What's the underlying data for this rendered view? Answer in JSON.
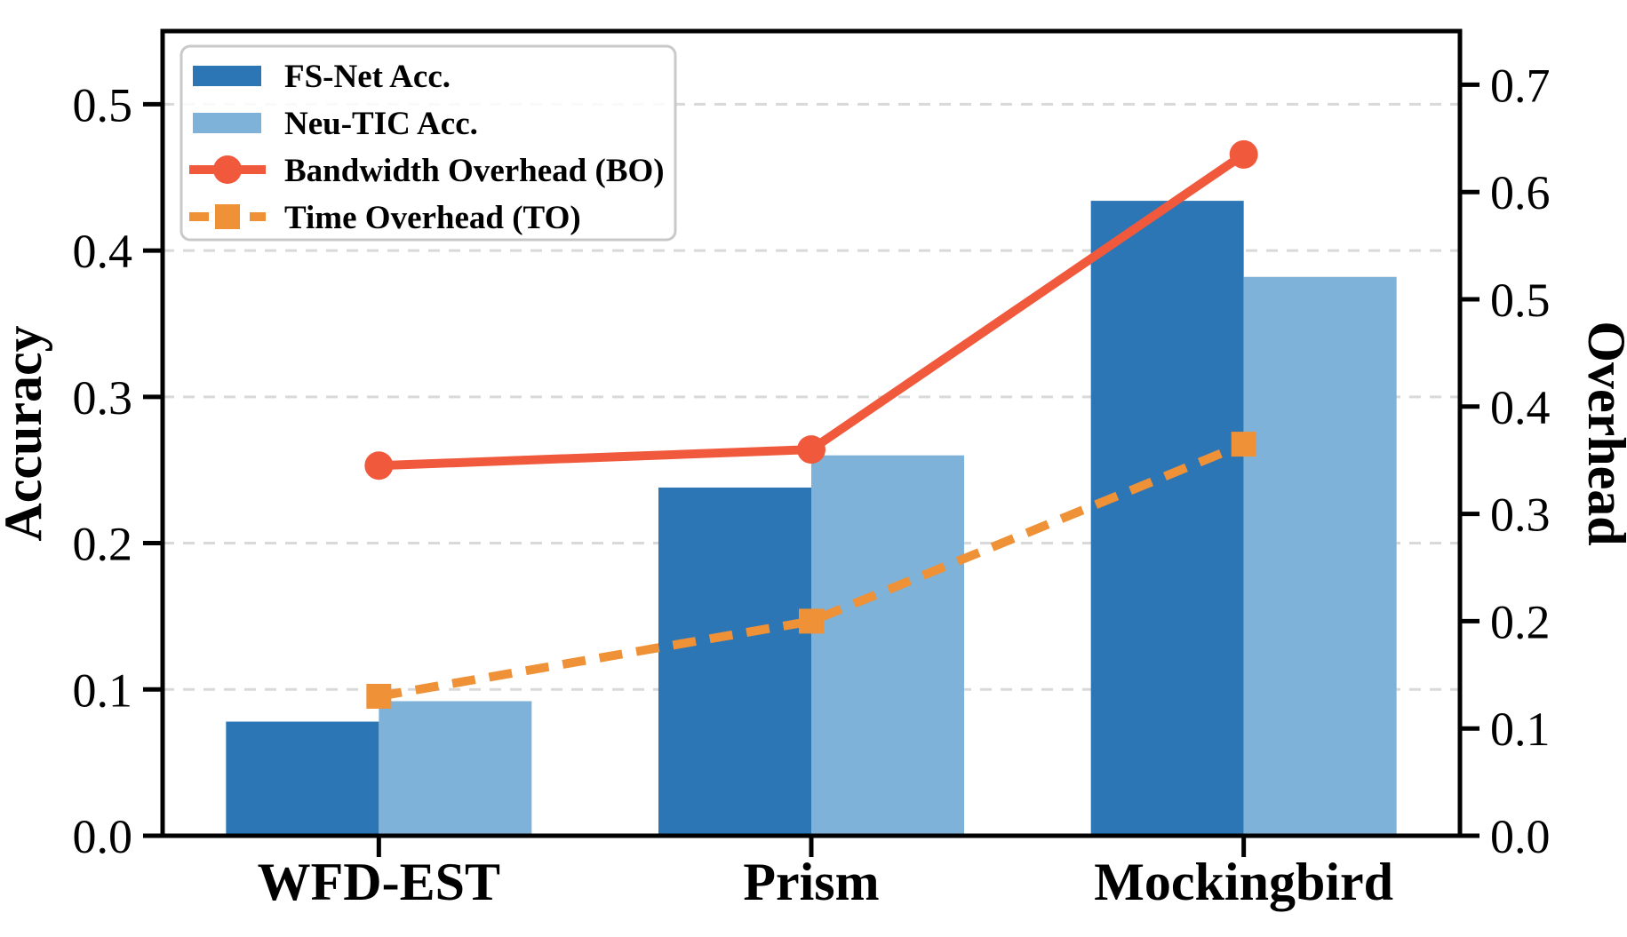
{
  "figure": {
    "background": "#ffffff",
    "text_color": "#000000",
    "spine_color": "#000000"
  },
  "chart_data": {
    "type": "bar",
    "subtype": "bar-line-combo",
    "categories": [
      "WFD-EST",
      "Prism",
      "Mockingbird"
    ],
    "series": [
      {
        "name": "FS-Net Acc.",
        "kind": "bar",
        "axis": "left",
        "color": "#2d76b5",
        "values": [
          0.078,
          0.238,
          0.434
        ]
      },
      {
        "name": "Neu-TIC Acc.",
        "kind": "bar",
        "axis": "left",
        "color": "#7fb2d9",
        "values": [
          0.092,
          0.26,
          0.382
        ]
      },
      {
        "name": "Bandwidth Overhead (BO)",
        "kind": "line",
        "style": "solid",
        "marker": "circle",
        "axis": "right",
        "color": "#f0593c",
        "values": [
          0.345,
          0.36,
          0.635
        ]
      },
      {
        "name": "Time Overhead (TO)",
        "kind": "line",
        "style": "dashed",
        "marker": "square",
        "axis": "right",
        "color": "#ef9136",
        "values": [
          0.13,
          0.2,
          0.365
        ]
      }
    ],
    "left_axis": {
      "label": "Accuracy",
      "ticks": [
        "0.0",
        "0.1",
        "0.2",
        "0.3",
        "0.4",
        "0.5"
      ],
      "range": [
        0,
        0.55
      ]
    },
    "right_axis": {
      "label": "Overhead",
      "ticks": [
        "0.0",
        "0.1",
        "0.2",
        "0.3",
        "0.4",
        "0.5",
        "0.6",
        "0.7"
      ],
      "range": [
        0,
        0.75
      ]
    },
    "grid": {
      "horizontal": true,
      "dashed": true,
      "color": "#d9d9d9",
      "follows": "left-ticks"
    },
    "legend": {
      "position": "upper-left",
      "border_color": "#c9c9c9",
      "background": "#ffffff",
      "entries": [
        {
          "label": "FS-Net Acc.",
          "swatch": "bar",
          "color": "#2d76b5"
        },
        {
          "label": "Neu-TIC Acc.",
          "swatch": "bar",
          "color": "#7fb2d9"
        },
        {
          "label": "Bandwidth Overhead (BO)",
          "swatch": "line-circle",
          "color": "#f0593c"
        },
        {
          "label": "Time Overhead (TO)",
          "swatch": "line-square-dashed",
          "color": "#ef9136"
        }
      ]
    }
  }
}
